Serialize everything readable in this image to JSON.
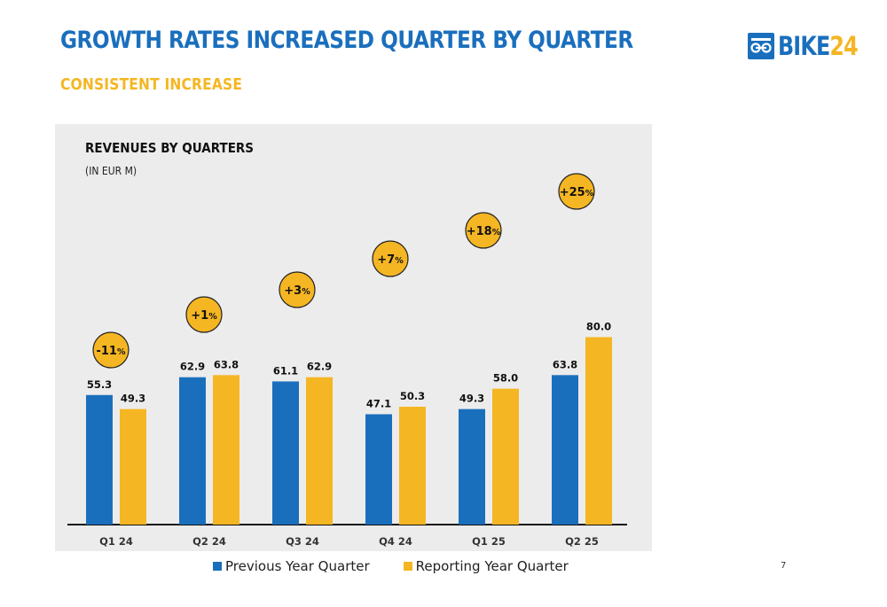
{
  "header": {
    "title": "GROWTH RATES INCREASED QUARTER BY QUARTER",
    "subtitle": "CONSISTENT INCREASE"
  },
  "logo": {
    "text_main": "BIKE",
    "text_num": "24",
    "icon": "bike-chain-icon"
  },
  "colors": {
    "title": "#1a6fbd",
    "accent": "#f5b623",
    "previous_year": "#1a6fbd",
    "reporting_year": "#f5b623",
    "panel_bg": "#ececec"
  },
  "page_number": "7",
  "chart_data": {
    "type": "bar",
    "title": "REVENUES BY QUARTERS",
    "unit": "(IN EUR M)",
    "categories": [
      "Q1 24",
      "Q2 24",
      "Q3 24",
      "Q4 24",
      "Q1 25",
      "Q2 25"
    ],
    "series": [
      {
        "name": "Previous Year Quarter",
        "values": [
          55.3,
          62.9,
          61.1,
          47.1,
          49.3,
          63.8
        ]
      },
      {
        "name": "Reporting Year Quarter",
        "values": [
          49.3,
          63.8,
          62.9,
          50.3,
          58.0,
          80.0
        ]
      }
    ],
    "growth_labels": [
      "-11",
      "+1",
      "+3",
      "+7",
      "+18",
      "+25"
    ],
    "growth_unit": "%",
    "ylim": [
      0,
      80
    ],
    "grid": false,
    "legend_position": "bottom"
  }
}
